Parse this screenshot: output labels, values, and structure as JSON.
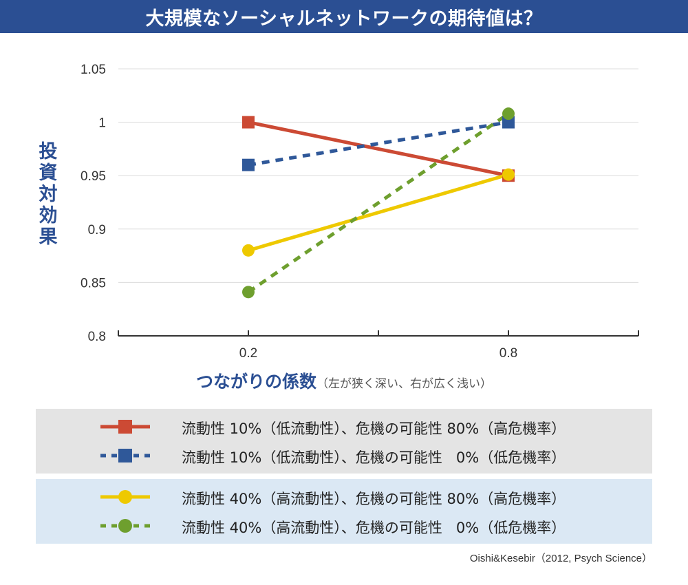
{
  "title": "大規模なソーシャルネットワークの期待値は？",
  "source": "Oishi&Kesebir（2012, Psych Science）",
  "chart_data": {
    "type": "line",
    "title": "大規模なソーシャルネットワークの期待値は？",
    "xlabel": "つながりの係数",
    "xlabel_note": "（左が狭く深い、右が広く浅い）",
    "ylabel": "投資対効果",
    "x": [
      0.2,
      0.8
    ],
    "x_tick_labels": [
      "0.2",
      "0.8"
    ],
    "xlim": [
      -0.1,
      1.1
    ],
    "ylim": [
      0.8,
      1.05
    ],
    "y_ticks": [
      0.8,
      0.85,
      0.9,
      0.95,
      1,
      1.05
    ],
    "y_tick_labels": [
      "0.8",
      "0.85",
      "0.9",
      "0.95",
      "1",
      "1.05"
    ],
    "grid": true,
    "legend_position": "bottom",
    "series": [
      {
        "name": "流動性 10%（低流動性）、危機の可能性 80%（高危機率）",
        "values": [
          1.0,
          0.95
        ],
        "color": "#cc4a34",
        "marker": "square",
        "dashed": false
      },
      {
        "name": "流動性 10%（低流動性）、危機の可能性   0%（低危機率）",
        "values": [
          0.96,
          1.0
        ],
        "color": "#2f5899",
        "marker": "square",
        "dashed": true
      },
      {
        "name": "流動性 40%（高流動性）、危機の可能性 80%（高危機率）",
        "values": [
          0.88,
          0.951
        ],
        "color": "#eec900",
        "marker": "circle",
        "dashed": false
      },
      {
        "name": "流動性 40%（高流動性）、危機の可能性   0%（低危機率）",
        "values": [
          0.841,
          1.008
        ],
        "color": "#6e9f2e",
        "marker": "circle",
        "dashed": true
      }
    ]
  }
}
